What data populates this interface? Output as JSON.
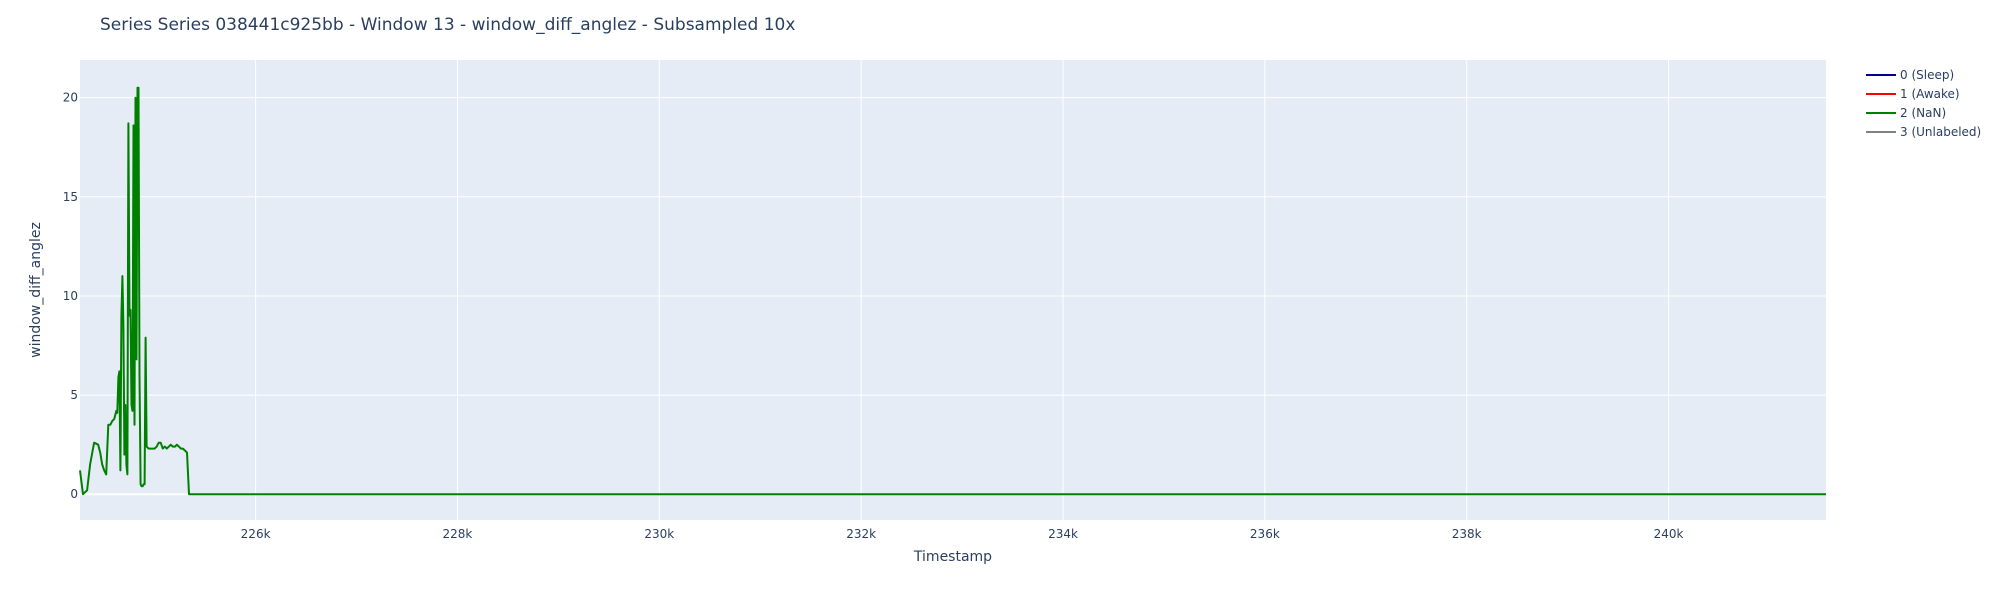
{
  "chart_data": {
    "type": "line",
    "title": "Series Series 038441c925bb - Window 13 - window_diff_anglez - Subsampled 10x",
    "xlabel": "Timestamp",
    "ylabel": "window_diff_anglez",
    "xlim": [
      224260,
      241560
    ],
    "ylim": [
      -1.3,
      21.9
    ],
    "x_ticks": [
      {
        "value": 226000,
        "label": "226k"
      },
      {
        "value": 228000,
        "label": "228k"
      },
      {
        "value": 230000,
        "label": "230k"
      },
      {
        "value": 232000,
        "label": "232k"
      },
      {
        "value": 234000,
        "label": "234k"
      },
      {
        "value": 236000,
        "label": "236k"
      },
      {
        "value": 238000,
        "label": "238k"
      },
      {
        "value": 240000,
        "label": "240k"
      }
    ],
    "y_ticks": [
      {
        "value": 0,
        "label": "0"
      },
      {
        "value": 5,
        "label": "5"
      },
      {
        "value": 10,
        "label": "10"
      },
      {
        "value": 15,
        "label": "15"
      },
      {
        "value": 20,
        "label": "20"
      }
    ],
    "grid": true,
    "legend_position": "top-right-outside",
    "series": [
      {
        "name": "0 (Sleep)",
        "color": "#00008b",
        "x": [],
        "y": []
      },
      {
        "name": "1 (Awake)",
        "color": "#ff0000",
        "x": [],
        "y": []
      },
      {
        "name": "2 (NaN)",
        "color": "#008000",
        "x": [
          224260,
          224290,
          224330,
          224360,
          224400,
          224440,
          224460,
          224480,
          224500,
          224520,
          224540,
          224560,
          224580,
          224600,
          224610,
          224620,
          224630,
          224640,
          224650,
          224660,
          224670,
          224680,
          224690,
          224700,
          224710,
          224720,
          224730,
          224740,
          224750,
          224760,
          224770,
          224780,
          224790,
          224800,
          224810,
          224820,
          224830,
          224840,
          224850,
          224860,
          224870,
          224880,
          224890,
          224900,
          224910,
          224920,
          224940,
          224960,
          224980,
          225000,
          225020,
          225040,
          225060,
          225080,
          225100,
          225120,
          225140,
          225160,
          225180,
          225200,
          225220,
          225240,
          225260,
          225280,
          225300,
          225320,
          225340,
          225360,
          241560
        ],
        "y": [
          1.2,
          0.0,
          0.2,
          1.5,
          2.6,
          2.5,
          2.1,
          1.5,
          1.2,
          1.0,
          3.5,
          3.5,
          3.7,
          3.8,
          4.0,
          4.2,
          4.1,
          5.9,
          6.2,
          1.2,
          9.0,
          11.0,
          8.5,
          2.0,
          4.5,
          1.5,
          1.0,
          18.7,
          9.0,
          9.3,
          4.5,
          4.2,
          18.6,
          3.5,
          20.0,
          6.8,
          20.5,
          20.5,
          6.0,
          0.5,
          0.4,
          0.4,
          0.5,
          0.5,
          7.9,
          2.4,
          2.3,
          2.3,
          2.3,
          2.3,
          2.4,
          2.6,
          2.6,
          2.3,
          2.4,
          2.3,
          2.4,
          2.5,
          2.4,
          2.4,
          2.5,
          2.4,
          2.3,
          2.3,
          2.2,
          2.1,
          0.0,
          0.0,
          0.0
        ]
      },
      {
        "name": "3 (Unlabeled)",
        "color": "#808080",
        "x": [],
        "y": []
      }
    ]
  }
}
